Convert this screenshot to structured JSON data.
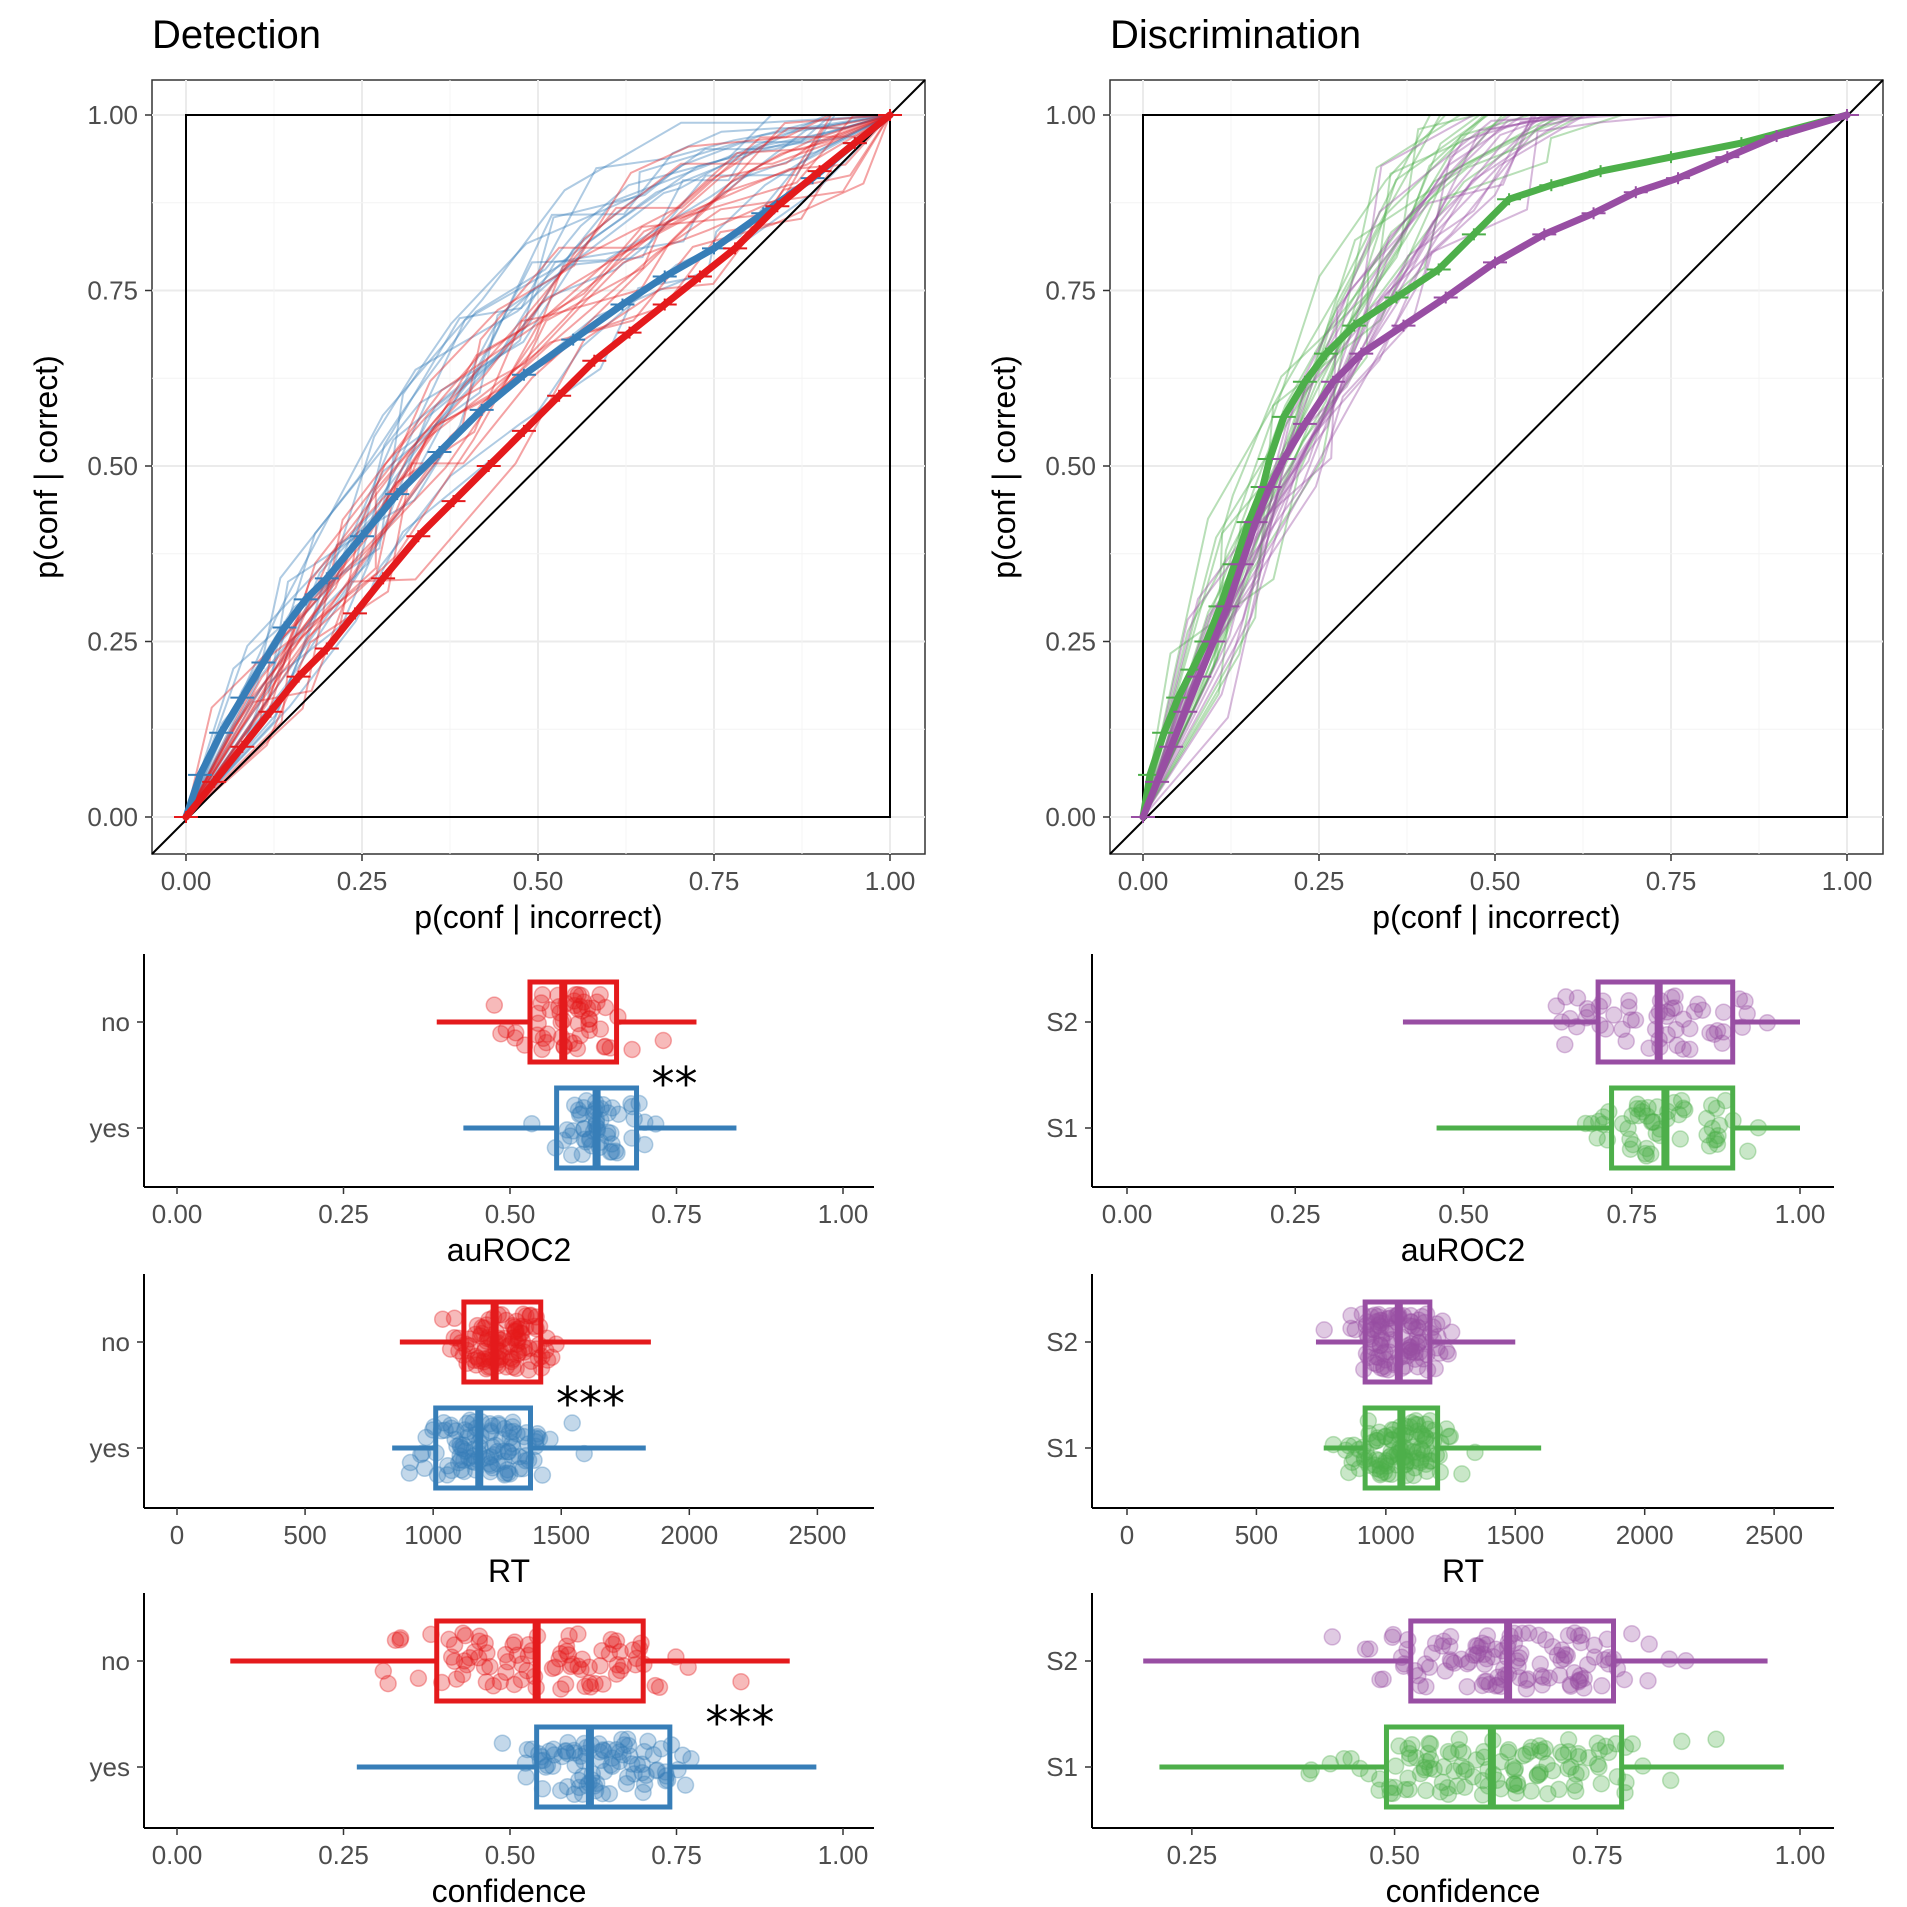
{
  "colors": {
    "red": "#e41a1c",
    "blue": "#377eb8",
    "green": "#4daf4a",
    "purple": "#984ea3",
    "grid": "#ebebeb",
    "black": "#000000"
  },
  "chart_data": [
    {
      "id": "roc_detection",
      "type": "line",
      "title": "Detection",
      "xlabel": "p(conf | incorrect)",
      "ylabel": "p(conf | correct)",
      "xlim": [
        0,
        1
      ],
      "ylim": [
        0,
        1
      ],
      "xticks": [
        "0.00",
        "0.25",
        "0.50",
        "0.75",
        "1.00"
      ],
      "yticks": [
        "0.00",
        "0.25",
        "0.50",
        "0.75",
        "1.00"
      ],
      "series": [
        {
          "name": "yes",
          "color": "#377eb8",
          "x": [
            0.0,
            0.02,
            0.05,
            0.08,
            0.11,
            0.14,
            0.17,
            0.2,
            0.25,
            0.3,
            0.36,
            0.42,
            0.48,
            0.55,
            0.62,
            0.68,
            0.75,
            0.82,
            0.89,
            0.95,
            1.0
          ],
          "y": [
            0.0,
            0.06,
            0.12,
            0.17,
            0.22,
            0.27,
            0.31,
            0.34,
            0.4,
            0.46,
            0.52,
            0.58,
            0.63,
            0.68,
            0.73,
            0.77,
            0.81,
            0.86,
            0.91,
            0.96,
            1.0
          ]
        },
        {
          "name": "no",
          "color": "#e41a1c",
          "x": [
            0.0,
            0.04,
            0.08,
            0.12,
            0.16,
            0.2,
            0.24,
            0.28,
            0.33,
            0.38,
            0.43,
            0.48,
            0.53,
            0.58,
            0.63,
            0.68,
            0.73,
            0.78,
            0.84,
            0.9,
            0.95,
            1.0
          ],
          "y": [
            0.0,
            0.05,
            0.1,
            0.15,
            0.2,
            0.24,
            0.29,
            0.34,
            0.4,
            0.45,
            0.5,
            0.55,
            0.6,
            0.65,
            0.69,
            0.73,
            0.77,
            0.81,
            0.87,
            0.92,
            0.96,
            1.0
          ]
        }
      ]
    },
    {
      "id": "roc_discrimination",
      "type": "line",
      "title": "Discrimination",
      "xlabel": "p(conf | incorrect)",
      "ylabel": "p(conf | correct)",
      "xlim": [
        0,
        1
      ],
      "ylim": [
        0,
        1
      ],
      "xticks": [
        "0.00",
        "0.25",
        "0.50",
        "0.75",
        "1.00"
      ],
      "yticks": [
        "0.00",
        "0.25",
        "0.50",
        "0.75",
        "1.00"
      ],
      "series": [
        {
          "name": "S1",
          "color": "#4daf4a",
          "x": [
            0.0,
            0.01,
            0.03,
            0.05,
            0.07,
            0.09,
            0.11,
            0.13,
            0.15,
            0.17,
            0.18,
            0.2,
            0.23,
            0.26,
            0.3,
            0.36,
            0.42,
            0.47,
            0.52,
            0.58,
            0.65,
            0.75,
            0.85,
            1.0
          ],
          "y": [
            0.0,
            0.06,
            0.12,
            0.17,
            0.21,
            0.25,
            0.3,
            0.36,
            0.42,
            0.47,
            0.51,
            0.57,
            0.62,
            0.66,
            0.7,
            0.74,
            0.78,
            0.83,
            0.88,
            0.9,
            0.92,
            0.94,
            0.96,
            1.0
          ]
        },
        {
          "name": "S2",
          "color": "#984ea3",
          "x": [
            0.0,
            0.02,
            0.04,
            0.06,
            0.08,
            0.1,
            0.12,
            0.14,
            0.16,
            0.18,
            0.2,
            0.23,
            0.27,
            0.31,
            0.37,
            0.43,
            0.5,
            0.57,
            0.64,
            0.7,
            0.76,
            0.83,
            0.9,
            1.0
          ],
          "y": [
            0.0,
            0.05,
            0.1,
            0.15,
            0.2,
            0.25,
            0.3,
            0.36,
            0.42,
            0.47,
            0.51,
            0.56,
            0.62,
            0.66,
            0.7,
            0.74,
            0.79,
            0.83,
            0.86,
            0.89,
            0.91,
            0.94,
            0.97,
            1.0
          ]
        }
      ]
    },
    {
      "id": "auroc2_detection",
      "type": "box",
      "xlabel": "auROC2",
      "xlim": [
        0,
        1
      ],
      "xticks": [
        "0.00",
        "0.25",
        "0.50",
        "0.75",
        "1.00"
      ],
      "tickvalues": [
        0,
        0.25,
        0.5,
        0.75,
        1
      ],
      "significance": "**",
      "groups": [
        {
          "name": "no",
          "color": "#e41a1c",
          "whisker_low": 0.39,
          "q1": 0.53,
          "median": 0.58,
          "q3": 0.66,
          "whisker_high": 0.78
        },
        {
          "name": "yes",
          "color": "#377eb8",
          "whisker_low": 0.43,
          "q1": 0.57,
          "median": 0.63,
          "q3": 0.69,
          "whisker_high": 0.84
        }
      ]
    },
    {
      "id": "auroc2_discrimination",
      "type": "box",
      "xlabel": "auROC2",
      "xlim": [
        0,
        1
      ],
      "xticks": [
        "0.00",
        "0.25",
        "0.50",
        "0.75",
        "1.00"
      ],
      "tickvalues": [
        0,
        0.25,
        0.5,
        0.75,
        1
      ],
      "significance": "",
      "groups": [
        {
          "name": "S2",
          "color": "#984ea3",
          "whisker_low": 0.41,
          "q1": 0.7,
          "median": 0.79,
          "q3": 0.9,
          "whisker_high": 1.0
        },
        {
          "name": "S1",
          "color": "#4daf4a",
          "whisker_low": 0.46,
          "q1": 0.72,
          "median": 0.8,
          "q3": 0.9,
          "whisker_high": 1.0
        }
      ]
    },
    {
      "id": "rt_detection",
      "type": "box",
      "xlabel": "RT",
      "xlim": [
        0,
        2600
      ],
      "xticks": [
        "0",
        "500",
        "1000",
        "1500",
        "2000",
        "2500"
      ],
      "tickvalues": [
        0,
        500,
        1000,
        1500,
        2000,
        2500
      ],
      "significance": "***",
      "groups": [
        {
          "name": "no",
          "color": "#e41a1c",
          "whisker_low": 870,
          "q1": 1120,
          "median": 1240,
          "q3": 1420,
          "whisker_high": 1850
        },
        {
          "name": "yes",
          "color": "#377eb8",
          "whisker_low": 840,
          "q1": 1010,
          "median": 1180,
          "q3": 1380,
          "whisker_high": 1830
        }
      ]
    },
    {
      "id": "rt_discrimination",
      "type": "box",
      "xlabel": "RT",
      "xlim": [
        0,
        2600
      ],
      "xticks": [
        "0",
        "500",
        "1000",
        "1500",
        "2000",
        "2500"
      ],
      "tickvalues": [
        0,
        500,
        1000,
        1500,
        2000,
        2500
      ],
      "significance": "",
      "groups": [
        {
          "name": "S2",
          "color": "#984ea3",
          "whisker_low": 730,
          "q1": 920,
          "median": 1050,
          "q3": 1170,
          "whisker_high": 1500
        },
        {
          "name": "S1",
          "color": "#4daf4a",
          "whisker_low": 760,
          "q1": 920,
          "median": 1060,
          "q3": 1200,
          "whisker_high": 1600
        }
      ]
    },
    {
      "id": "confidence_detection",
      "type": "box",
      "xlabel": "confidence",
      "xlim": [
        0,
        1
      ],
      "xticks": [
        "0.00",
        "0.25",
        "0.50",
        "0.75",
        "1.00"
      ],
      "tickvalues": [
        0,
        0.25,
        0.5,
        0.75,
        1
      ],
      "significance": "***",
      "groups": [
        {
          "name": "no",
          "color": "#e41a1c",
          "whisker_low": 0.08,
          "q1": 0.39,
          "median": 0.54,
          "q3": 0.7,
          "whisker_high": 0.92
        },
        {
          "name": "yes",
          "color": "#377eb8",
          "whisker_low": 0.27,
          "q1": 0.54,
          "median": 0.62,
          "q3": 0.74,
          "whisker_high": 0.96
        }
      ]
    },
    {
      "id": "confidence_discrimination",
      "type": "box",
      "xlabel": "confidence",
      "xlim": [
        0.17,
        1.0
      ],
      "xticks": [
        "0.25",
        "0.50",
        "0.75",
        "1.00"
      ],
      "tickvalues": [
        0.25,
        0.5,
        0.75,
        1
      ],
      "significance": "",
      "groups": [
        {
          "name": "S2",
          "color": "#984ea3",
          "whisker_low": 0.19,
          "q1": 0.52,
          "median": 0.64,
          "q3": 0.77,
          "whisker_high": 0.96
        },
        {
          "name": "S1",
          "color": "#4daf4a",
          "whisker_low": 0.21,
          "q1": 0.49,
          "median": 0.62,
          "q3": 0.78,
          "whisker_high": 0.98
        }
      ]
    }
  ]
}
